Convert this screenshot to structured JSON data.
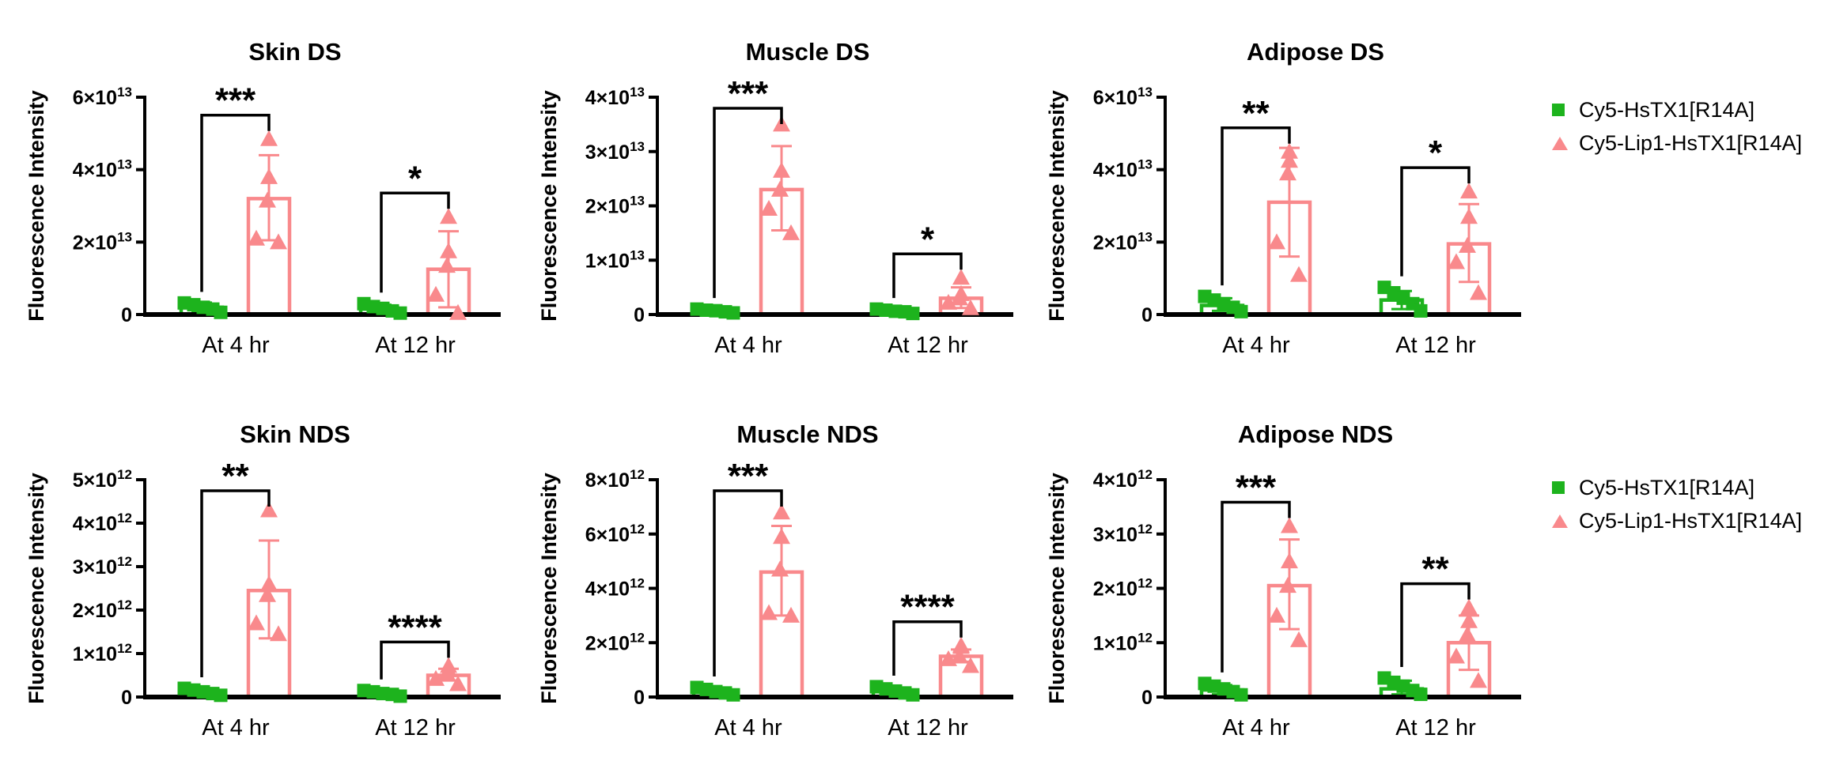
{
  "figure": {
    "background": "#ffffff",
    "axis_color": "#000000",
    "series_colors": {
      "green": "#1db31d",
      "pink": "#f9898c"
    }
  },
  "legend": {
    "items": [
      {
        "label": "Cy5-HsTX1[R14A]",
        "marker": "square",
        "color_key": "green"
      },
      {
        "label": "Cy5-Lip1-HsTX1[R14A]",
        "marker": "triangle",
        "color_key": "pink"
      }
    ]
  },
  "chart_data": [
    {
      "type": "bar",
      "title": "Skin DS",
      "ylabel": "Fluorescence Intensity",
      "exponent": 13,
      "ymax": 6,
      "yticks": [
        0,
        2,
        4,
        6
      ],
      "categories": [
        "At 4 hr",
        "At 12 hr"
      ],
      "significance": [
        "***",
        "*"
      ],
      "legend_position": "right",
      "series": [
        {
          "name": "Cy5-HsTX1[R14A]",
          "color": "green",
          "marker": "square",
          "groups": [
            {
              "mean": 0.2,
              "lo": 0.08,
              "hi": 0.33,
              "points": [
                0.32,
                0.27,
                0.2,
                0.15,
                0.06
              ]
            },
            {
              "mean": 0.15,
              "lo": 0.05,
              "hi": 0.27,
              "points": [
                0.3,
                0.22,
                0.17,
                0.1,
                0.04
              ]
            }
          ]
        },
        {
          "name": "Cy5-Lip1-HsTX1[R14A]",
          "color": "pink",
          "marker": "triangle",
          "groups": [
            {
              "mean": 3.2,
              "lo": 2.05,
              "hi": 4.4,
              "points": [
                4.85,
                3.8,
                3.15,
                2.1,
                2.0
              ]
            },
            {
              "mean": 1.25,
              "lo": 0.2,
              "hi": 2.3,
              "points": [
                2.7,
                1.75,
                1.35,
                0.55,
                0.05
              ]
            }
          ]
        }
      ]
    },
    {
      "type": "bar",
      "title": "Muscle DS",
      "ylabel": "Fluorescence Intensity",
      "exponent": 13,
      "ymax": 4,
      "yticks": [
        0,
        1,
        2,
        3,
        4
      ],
      "categories": [
        "At 4 hr",
        "At 12 hr"
      ],
      "significance": [
        "***",
        "*"
      ],
      "legend_position": "none",
      "series": [
        {
          "name": "Cy5-HsTX1[R14A]",
          "color": "green",
          "marker": "square",
          "groups": [
            {
              "mean": 0.07,
              "lo": 0.03,
              "hi": 0.12,
              "points": [
                0.1,
                0.08,
                0.07,
                0.05,
                0.03
              ]
            },
            {
              "mean": 0.06,
              "lo": 0.02,
              "hi": 0.1,
              "points": [
                0.1,
                0.08,
                0.06,
                0.05,
                0.02
              ]
            }
          ]
        },
        {
          "name": "Cy5-Lip1-HsTX1[R14A]",
          "color": "pink",
          "marker": "triangle",
          "groups": [
            {
              "mean": 2.3,
              "lo": 1.55,
              "hi": 3.1,
              "points": [
                3.5,
                2.65,
                2.3,
                1.95,
                1.5
              ]
            },
            {
              "mean": 0.3,
              "lo": 0.12,
              "hi": 0.5,
              "points": [
                0.68,
                0.38,
                0.3,
                0.22,
                0.12
              ]
            }
          ]
        }
      ]
    },
    {
      "type": "bar",
      "title": "Adipose DS",
      "ylabel": "Fluorescence Intensity",
      "exponent": 13,
      "ymax": 6,
      "yticks": [
        0,
        2,
        4,
        6
      ],
      "categories": [
        "At 4 hr",
        "At 12 hr"
      ],
      "significance": [
        "**",
        "*"
      ],
      "legend_position": "right",
      "series": [
        {
          "name": "Cy5-HsTX1[R14A]",
          "color": "green",
          "marker": "square",
          "groups": [
            {
              "mean": 0.25,
              "lo": 0.1,
              "hi": 0.45,
              "points": [
                0.5,
                0.4,
                0.3,
                0.2,
                0.08
              ]
            },
            {
              "mean": 0.4,
              "lo": 0.15,
              "hi": 0.65,
              "points": [
                0.75,
                0.6,
                0.45,
                0.3,
                0.1
              ]
            }
          ]
        },
        {
          "name": "Cy5-Lip1-HsTX1[R14A]",
          "color": "pink",
          "marker": "triangle",
          "groups": [
            {
              "mean": 3.1,
              "lo": 1.6,
              "hi": 4.6,
              "points": [
                4.5,
                4.25,
                3.9,
                2.0,
                1.1
              ]
            },
            {
              "mean": 1.95,
              "lo": 0.9,
              "hi": 3.05,
              "points": [
                3.4,
                2.7,
                1.9,
                1.45,
                0.6
              ]
            }
          ]
        }
      ]
    },
    {
      "type": "bar",
      "title": "Skin NDS",
      "ylabel": "Fluorescence Intensity",
      "exponent": 12,
      "ymax": 5,
      "yticks": [
        0,
        1,
        2,
        3,
        4,
        5
      ],
      "categories": [
        "At 4 hr",
        "At 12 hr"
      ],
      "significance": [
        "**",
        "****"
      ],
      "legend_position": "none",
      "series": [
        {
          "name": "Cy5-HsTX1[R14A]",
          "color": "green",
          "marker": "square",
          "groups": [
            {
              "mean": 0.12,
              "lo": 0.05,
              "hi": 0.2,
              "points": [
                0.2,
                0.16,
                0.12,
                0.08,
                0.04
              ]
            },
            {
              "mean": 0.08,
              "lo": 0.03,
              "hi": 0.15,
              "points": [
                0.15,
                0.12,
                0.08,
                0.06,
                0.02
              ]
            }
          ]
        },
        {
          "name": "Cy5-Lip1-HsTX1[R14A]",
          "color": "pink",
          "marker": "triangle",
          "groups": [
            {
              "mean": 2.45,
              "lo": 1.35,
              "hi": 3.6,
              "points": [
                4.3,
                2.6,
                2.35,
                1.7,
                1.45
              ]
            },
            {
              "mean": 0.5,
              "lo": 0.38,
              "hi": 0.65,
              "points": [
                0.72,
                0.62,
                0.55,
                0.42,
                0.3
              ]
            }
          ]
        }
      ]
    },
    {
      "type": "bar",
      "title": "Muscle NDS",
      "ylabel": "Fluorescence Intensity",
      "exponent": 12,
      "ymax": 8,
      "yticks": [
        0,
        2,
        4,
        6,
        8
      ],
      "categories": [
        "At 4 hr",
        "At 12 hr"
      ],
      "significance": [
        "***",
        "****"
      ],
      "legend_position": "none",
      "series": [
        {
          "name": "Cy5-HsTX1[R14A]",
          "color": "green",
          "marker": "square",
          "groups": [
            {
              "mean": 0.2,
              "lo": 0.1,
              "hi": 0.35,
              "points": [
                0.35,
                0.28,
                0.2,
                0.15,
                0.08
              ]
            },
            {
              "mean": 0.2,
              "lo": 0.08,
              "hi": 0.35,
              "points": [
                0.38,
                0.3,
                0.22,
                0.15,
                0.08
              ]
            }
          ]
        },
        {
          "name": "Cy5-Lip1-HsTX1[R14A]",
          "color": "pink",
          "marker": "triangle",
          "groups": [
            {
              "mean": 4.6,
              "lo": 3.0,
              "hi": 6.3,
              "points": [
                6.8,
                5.9,
                4.7,
                3.1,
                3.0
              ]
            },
            {
              "mean": 1.5,
              "lo": 1.3,
              "hi": 1.75,
              "points": [
                1.9,
                1.85,
                1.5,
                1.4,
                1.15
              ]
            }
          ]
        }
      ]
    },
    {
      "type": "bar",
      "title": "Adipose NDS",
      "ylabel": "Fluorescence Intensity",
      "exponent": 12,
      "ymax": 4,
      "yticks": [
        0,
        1,
        2,
        3,
        4
      ],
      "categories": [
        "At 4 hr",
        "At 12 hr"
      ],
      "significance": [
        "***",
        "**"
      ],
      "legend_position": "right",
      "series": [
        {
          "name": "Cy5-HsTX1[R14A]",
          "color": "green",
          "marker": "square",
          "groups": [
            {
              "mean": 0.13,
              "lo": 0.05,
              "hi": 0.22,
              "points": [
                0.25,
                0.2,
                0.15,
                0.1,
                0.04
              ]
            },
            {
              "mean": 0.15,
              "lo": 0.05,
              "hi": 0.3,
              "points": [
                0.35,
                0.27,
                0.2,
                0.12,
                0.05
              ]
            }
          ]
        },
        {
          "name": "Cy5-Lip1-HsTX1[R14A]",
          "color": "pink",
          "marker": "triangle",
          "groups": [
            {
              "mean": 2.05,
              "lo": 1.25,
              "hi": 2.9,
              "points": [
                3.15,
                2.5,
                2.05,
                1.5,
                1.05
              ]
            },
            {
              "mean": 1.0,
              "lo": 0.5,
              "hi": 1.5,
              "points": [
                1.65,
                1.4,
                1.15,
                0.75,
                0.3
              ]
            }
          ]
        }
      ]
    }
  ]
}
